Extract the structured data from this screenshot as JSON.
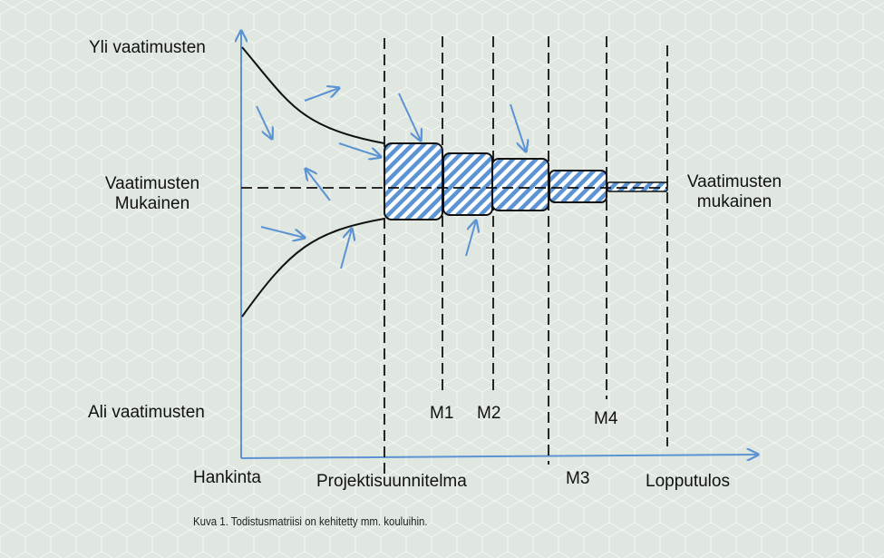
{
  "colors": {
    "background": "#dfe7e0",
    "pattern_line": "#f3f6f2",
    "axis": "#5b93d3",
    "arrow": "#5b93d3",
    "hatch": "#5b93d3",
    "box_border": "#111111",
    "line": "#111111"
  },
  "labels": {
    "yli": "Yli vaatimusten",
    "mukainen_left_1": "Vaatimusten",
    "mukainen_left_2": "Mukainen",
    "ali": "Ali vaatimusten",
    "mukainen_right_1": "Vaatimusten",
    "mukainen_right_2": "mukainen",
    "hankinta": "Hankinta",
    "projektisuunnitelma": "Projektisuunnitelma",
    "m1": "M1",
    "m2": "M2",
    "m3": "M3",
    "m4": "M4",
    "lopputulos": "Lopputulos"
  },
  "caption": "Kuva 1. Todistusmatriisi on kehitetty mm. kouluihin."
}
